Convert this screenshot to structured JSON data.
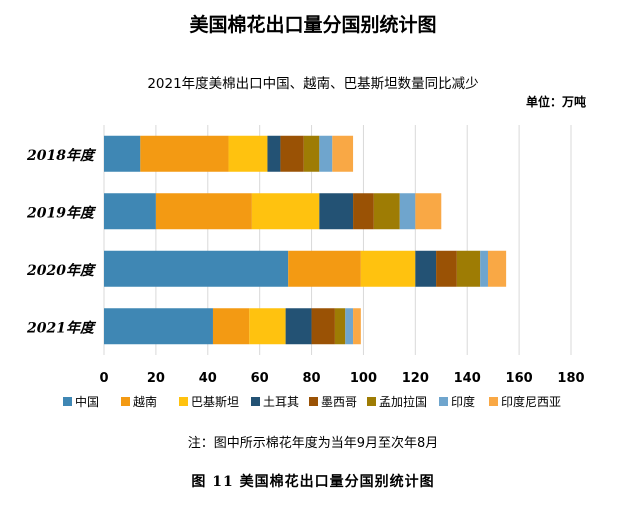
{
  "title": "美国棉花出口量分国别统计图",
  "subtitle": "2021年度美棉出口中国、越南、巴基斯坦数量同比减少",
  "unit": "单位：万吨",
  "note": "注：图中所示棉花年度为当年9月至次年8月",
  "caption": "图 11   美国棉花出口量分国别统计图",
  "colors": [
    "#3F87B4",
    "#F39A13",
    "#FFC20F",
    "#235274",
    "#9A5205",
    "#9E7C04",
    "#6FA5CD",
    "#F9A845"
  ],
  "chart_data": {
    "type": "bar",
    "orientation": "horizontal",
    "stacked": true,
    "categories": [
      "2018年度",
      "2019年度",
      "2020年度",
      "2021年度"
    ],
    "xlim": [
      0,
      180
    ],
    "xticks": [
      0,
      20,
      40,
      60,
      80,
      100,
      120,
      140,
      160,
      180
    ],
    "grid": "vertical",
    "legend_position": "bottom",
    "series": [
      {
        "name": "中国",
        "values": [
          14,
          20,
          71,
          42
        ]
      },
      {
        "name": "越南",
        "values": [
          34,
          37,
          28,
          14
        ]
      },
      {
        "name": "巴基斯坦",
        "values": [
          15,
          26,
          21,
          14
        ]
      },
      {
        "name": "土耳其",
        "values": [
          5,
          13,
          8,
          10
        ]
      },
      {
        "name": "墨西哥",
        "values": [
          9,
          8,
          8,
          9
        ]
      },
      {
        "name": "孟加拉国",
        "values": [
          6,
          10,
          9,
          4
        ]
      },
      {
        "name": "印度",
        "values": [
          5,
          6,
          3,
          3
        ]
      },
      {
        "name": "印度尼西亚",
        "values": [
          8,
          10,
          7,
          3
        ]
      }
    ]
  }
}
